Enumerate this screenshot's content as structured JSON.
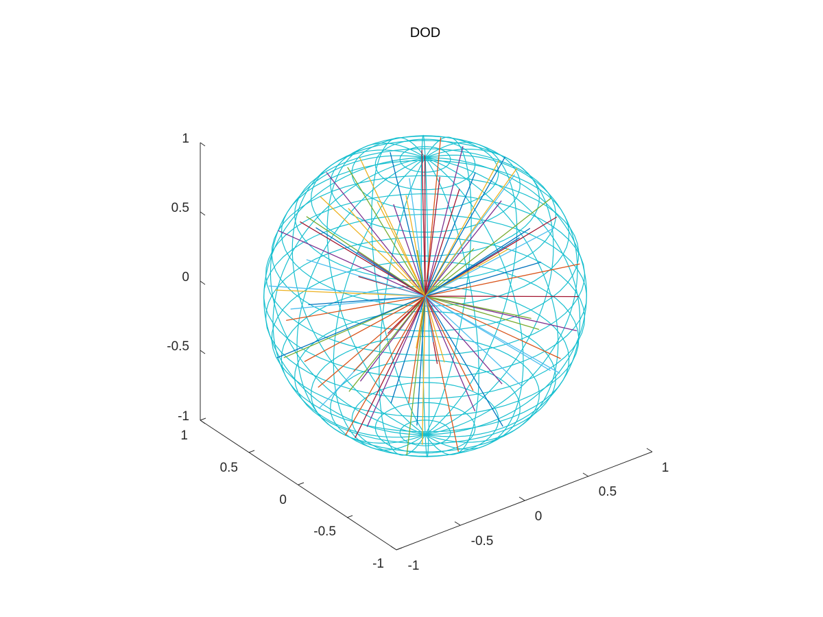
{
  "chart_data": {
    "type": "line3d",
    "title": "DOD",
    "xlabel": "",
    "ylabel": "",
    "zlabel": "",
    "xlim": [
      -1,
      1
    ],
    "ylim": [
      -1,
      1
    ],
    "zlim": [
      -1,
      1
    ],
    "x_ticks": [
      "-1",
      "-0.5",
      "0",
      "0.5",
      "1"
    ],
    "y_ticks": [
      "-1",
      "-0.5",
      "0",
      "0.5",
      "1"
    ],
    "z_ticks": [
      "-1",
      "-0.5",
      "0",
      "0.5",
      "1"
    ],
    "view": {
      "azimuth": -37.5,
      "elevation": 30
    },
    "grid": false,
    "sphere": {
      "radius": 1,
      "color": "#17bfcf",
      "mesh": "wireframe"
    },
    "palette": [
      "#0072bd",
      "#d95319",
      "#edb120",
      "#7e2f8e",
      "#77ac30",
      "#4dbeee",
      "#a2142f"
    ],
    "segments": [
      [
        -0.95,
        -0.05,
        0.3
      ],
      [
        -0.97,
        0.15,
        0.1
      ],
      [
        -0.9,
        0.35,
        0.2
      ],
      [
        -0.85,
        -0.45,
        -0.1
      ],
      [
        -0.95,
        0.2,
        -0.2
      ],
      [
        -0.8,
        0.55,
        0.1
      ],
      [
        -0.75,
        -0.3,
        0.55
      ],
      [
        -0.7,
        0.2,
        0.65
      ],
      [
        -0.6,
        -0.55,
        0.55
      ],
      [
        -0.55,
        0.35,
        0.75
      ],
      [
        -0.4,
        -0.2,
        0.9
      ],
      [
        -0.3,
        0.4,
        0.85
      ],
      [
        -0.2,
        -0.1,
        0.97
      ],
      [
        0.05,
        0.1,
        0.99
      ],
      [
        0.2,
        -0.25,
        0.94
      ],
      [
        0.35,
        0.3,
        0.88
      ],
      [
        0.5,
        -0.1,
        0.85
      ],
      [
        0.6,
        0.4,
        0.68
      ],
      [
        0.75,
        -0.3,
        0.58
      ],
      [
        0.85,
        0.2,
        0.48
      ],
      [
        0.95,
        -0.1,
        0.28
      ],
      [
        0.97,
        0.2,
        0.05
      ],
      [
        0.9,
        -0.4,
        0.1
      ],
      [
        0.92,
        0.35,
        -0.15
      ],
      [
        0.8,
        -0.5,
        -0.3
      ],
      [
        0.7,
        0.5,
        -0.5
      ],
      [
        0.6,
        -0.2,
        -0.77
      ],
      [
        0.4,
        0.4,
        -0.82
      ],
      [
        0.3,
        -0.4,
        -0.86
      ],
      [
        0.1,
        0.3,
        -0.95
      ],
      [
        -0.1,
        -0.1,
        -0.99
      ],
      [
        -0.3,
        0.2,
        -0.93
      ],
      [
        -0.45,
        -0.4,
        -0.8
      ],
      [
        -0.6,
        0.3,
        -0.74
      ],
      [
        -0.7,
        -0.2,
        -0.68
      ],
      [
        -0.85,
        0.4,
        -0.33
      ],
      [
        -0.95,
        -0.15,
        -0.25
      ],
      [
        -0.5,
        -0.85,
        0.1
      ],
      [
        -0.3,
        -0.9,
        -0.3
      ],
      [
        0.1,
        -0.95,
        0.25
      ],
      [
        0.4,
        -0.85,
        -0.3
      ],
      [
        0.6,
        -0.78,
        0.15
      ],
      [
        0.2,
        -0.7,
        0.68
      ],
      [
        -0.2,
        -0.6,
        -0.77
      ],
      [
        0.5,
        0.85,
        0.15
      ],
      [
        0.2,
        0.95,
        -0.2
      ],
      [
        -0.2,
        0.95,
        0.2
      ],
      [
        -0.4,
        0.85,
        -0.35
      ],
      [
        0.65,
        0.7,
        0.3
      ],
      [
        0.3,
        0.75,
        0.58
      ],
      [
        -0.1,
        0.6,
        -0.79
      ],
      [
        0.1,
        0.8,
        0.59
      ],
      [
        -0.65,
        0.65,
        0.4
      ],
      [
        0.8,
        0.55,
        -0.2
      ],
      [
        0.55,
        -0.6,
        0.58
      ],
      [
        -0.75,
        -0.6,
        0.28
      ],
      [
        -0.6,
        -0.7,
        -0.39
      ],
      [
        0.75,
        -0.4,
        -0.53
      ],
      [
        0.35,
        0.55,
        -0.76
      ],
      [
        -0.35,
        0.55,
        0.76
      ],
      [
        0.85,
        -0.05,
        -0.52
      ],
      [
        -0.85,
        0.1,
        0.52
      ],
      [
        0.0,
        -0.35,
        0.94
      ],
      [
        0.0,
        0.35,
        -0.94
      ],
      [
        0.45,
        0.1,
        -0.89
      ],
      [
        -0.45,
        -0.1,
        0.89
      ],
      [
        0.9,
        0.4,
        0.18
      ],
      [
        -0.9,
        -0.4,
        -0.18
      ],
      [
        0.25,
        -0.95,
        -0.18
      ],
      [
        -0.25,
        0.95,
        0.18
      ],
      [
        0.7,
        0.1,
        0.71
      ],
      [
        -0.7,
        -0.1,
        -0.71
      ],
      [
        0.15,
        0.98,
        0.12
      ],
      [
        -0.15,
        -0.98,
        -0.12
      ],
      [
        0.55,
        0.8,
        -0.24
      ],
      [
        -0.55,
        -0.8,
        0.24
      ],
      [
        0.02,
        0.03,
        1.0
      ],
      [
        0.98,
        0.1,
        -0.15
      ],
      [
        -0.98,
        -0.05,
        -0.1
      ],
      [
        0.6,
        -0.15,
        0.78
      ]
    ]
  }
}
